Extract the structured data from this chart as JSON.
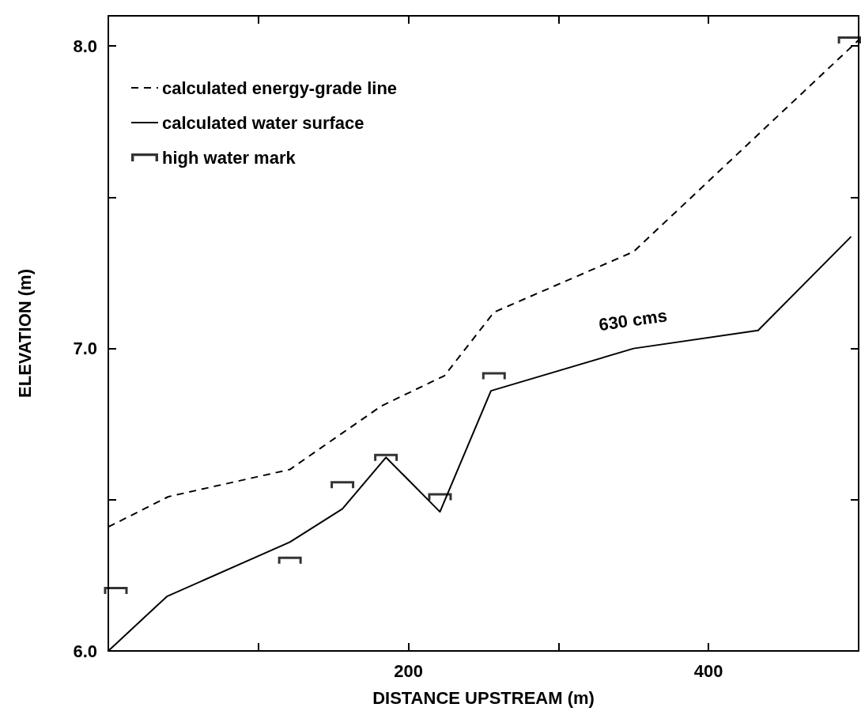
{
  "chart_data": {
    "type": "line",
    "xlabel": "DISTANCE UPSTREAM (m)",
    "ylabel": "ELEVATION (m)",
    "xlim": [
      0,
      500
    ],
    "xticks": [
      {
        "value": 0,
        "label": null
      },
      {
        "value": 100,
        "label": null
      },
      200,
      {
        "value": 300,
        "label": null
      },
      400,
      {
        "value": 500,
        "label": null
      }
    ],
    "ylim": [
      6,
      8.1
    ],
    "yticks": [
      {
        "value": 6,
        "label": "6.0"
      },
      {
        "value": 6.5,
        "label": null
      },
      {
        "value": 7,
        "label": "7.0"
      },
      {
        "value": 7.5,
        "label": null
      },
      {
        "value": 8,
        "label": "8.0"
      }
    ],
    "grid": false,
    "legend": "top left",
    "annotations": [
      "630 cms"
    ],
    "series": [
      {
        "name": "calculated energy-grade line",
        "line_style": "dashed",
        "color": "#000000",
        "x": [
          0,
          40,
          121,
          182,
          224,
          257,
          350,
          500
        ],
        "values": [
          6.41,
          6.51,
          6.6,
          6.81,
          6.91,
          7.12,
          7.32,
          8.02
        ]
      },
      {
        "name": "calculated water surface",
        "line_style": "solid",
        "color": "#000000",
        "x": [
          0,
          39,
          121,
          156,
          185,
          221,
          255,
          350,
          433,
          495
        ],
        "values": [
          6.0,
          6.18,
          6.36,
          6.47,
          6.64,
          6.46,
          6.86,
          7.0,
          7.06,
          7.37
        ]
      },
      {
        "name": "high water mark",
        "type": "scatter",
        "color": "#000000",
        "x": [
          5,
          121,
          156,
          185,
          221,
          257,
          494
        ],
        "values": [
          6.2,
          6.3,
          6.55,
          6.64,
          6.51,
          6.91,
          8.02
        ]
      }
    ]
  }
}
